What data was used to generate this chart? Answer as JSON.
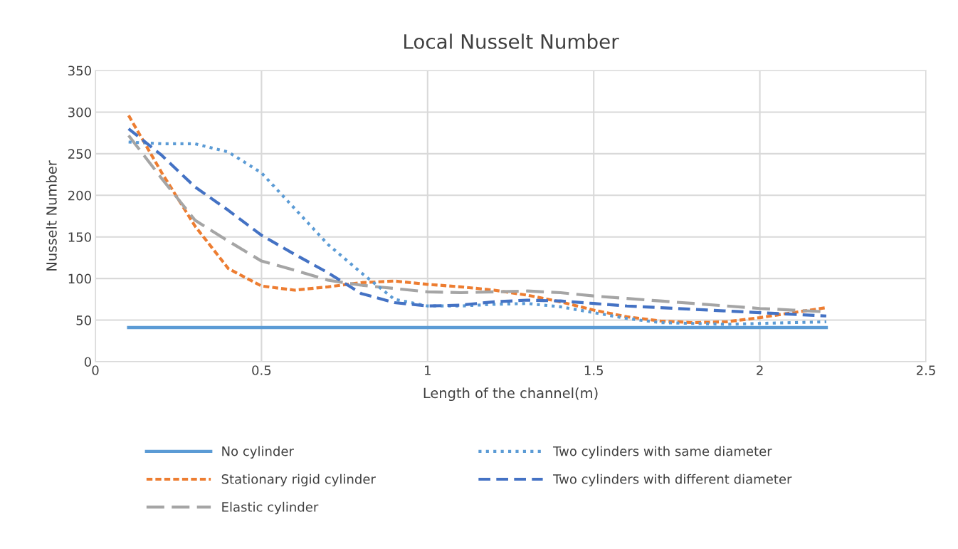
{
  "chart_data": {
    "type": "line",
    "title": "Local Nusselt Number",
    "xlabel": "Length of the channel(m)",
    "ylabel": "Nusselt Number",
    "x": [
      0.1,
      0.2,
      0.3,
      0.4,
      0.5,
      0.6,
      0.7,
      0.8,
      0.9,
      1.0,
      1.1,
      1.2,
      1.3,
      1.4,
      1.5,
      1.6,
      1.7,
      1.8,
      1.9,
      2.0,
      2.1,
      2.2
    ],
    "series": [
      {
        "name": "No cylinder",
        "color": "#5b9bd5",
        "line_style": "solid",
        "values": [
          41,
          41,
          41,
          41,
          41,
          41,
          41,
          41,
          41,
          41,
          41,
          41,
          41,
          41,
          41,
          41,
          41,
          41,
          41,
          41,
          41,
          41
        ]
      },
      {
        "name": "Stationary rigid cylinder",
        "color": "#ed7d31",
        "line_style": "dashed",
        "values": [
          296,
          227,
          163,
          112,
          91,
          86,
          90,
          95,
          97,
          93,
          90,
          86,
          80,
          72,
          62,
          54,
          49,
          47,
          48,
          53,
          59,
          65
        ]
      },
      {
        "name": "Elastic cylinder",
        "color": "#a5a5a5",
        "line_style": "dashed",
        "values": [
          272,
          220,
          170,
          145,
          121,
          110,
          98,
          92,
          88,
          84,
          83,
          84,
          85,
          83,
          79,
          76,
          73,
          70,
          67,
          64,
          62,
          60
        ]
      },
      {
        "name": "Two cylinders with same diameter",
        "color": "#5b9bd5",
        "line_style": "dotted",
        "values": [
          264,
          262,
          262,
          252,
          227,
          184,
          141,
          107,
          75,
          67,
          67,
          69,
          70,
          66,
          59,
          52,
          47,
          46,
          45,
          46,
          47,
          48
        ]
      },
      {
        "name": "Two cylinders with different diameter",
        "color": "#4472c4",
        "line_style": "dashed",
        "values": [
          280,
          248,
          210,
          182,
          152,
          129,
          107,
          82,
          71,
          67,
          68,
          72,
          74,
          73,
          70,
          67,
          65,
          63,
          61,
          59,
          57,
          55
        ]
      }
    ],
    "xlim": [
      0,
      2.5
    ],
    "xticks": [
      0,
      0.5,
      1,
      1.5,
      2,
      2.5
    ],
    "ylim": [
      0,
      350
    ],
    "yticks": [
      0,
      50,
      100,
      150,
      200,
      250,
      300,
      350
    ],
    "grid": true,
    "legend": "bottom",
    "marker": "none"
  }
}
